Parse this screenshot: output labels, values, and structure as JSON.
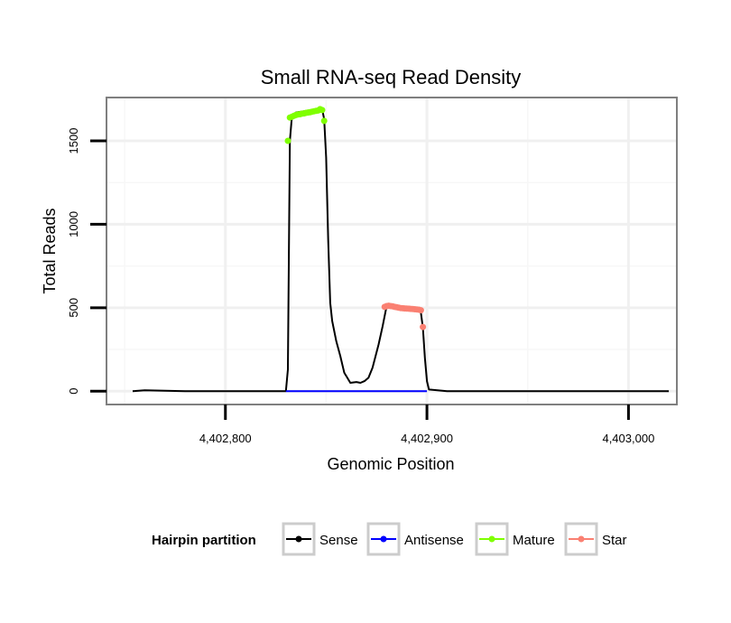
{
  "chart_data": {
    "type": "line",
    "title": "Small RNA-seq Read Density",
    "xlabel": "Genomic Position",
    "ylabel": "Total Reads",
    "xlim": [
      4402741,
      4403024
    ],
    "ylim": [
      -80,
      1760
    ],
    "x_ticks": [
      4402800,
      4402900,
      4403000
    ],
    "x_tick_labels": [
      "4,402,800",
      "4,402,900",
      "4,403,000"
    ],
    "y_ticks": [
      0,
      500,
      1000,
      1500
    ],
    "y_tick_labels": [
      "0",
      "500",
      "1000",
      "1500"
    ],
    "legend_title": "Hairpin partition",
    "legend_position": "bottom",
    "series": [
      {
        "name": "Sense",
        "color": "#000000",
        "style": "line",
        "x": [
          4402754,
          4402760,
          4402770,
          4402780,
          4402790,
          4402800,
          4402810,
          4402820,
          4402825,
          4402830,
          4402831,
          4402832,
          4402833,
          4402835,
          4402840,
          4402845,
          4402848,
          4402849,
          4402850,
          4402851,
          4402852,
          4402853,
          4402855,
          4402857,
          4402858,
          4402859,
          4402860,
          4402862,
          4402865,
          4402867,
          4402869,
          4402871,
          4402873,
          4402876,
          4402878,
          4402879,
          4402880,
          4402885,
          4402890,
          4402895,
          4402897,
          4402898,
          4402899,
          4402900,
          4402901,
          4402910,
          4402950,
          4403000,
          4403020
        ],
        "values": [
          0,
          5,
          3,
          0,
          0,
          0,
          0,
          0,
          0,
          0,
          130,
          1500,
          1650,
          1670,
          1680,
          1690,
          1690,
          1630,
          1400,
          900,
          530,
          420,
          300,
          210,
          160,
          110,
          90,
          50,
          55,
          50,
          60,
          80,
          140,
          280,
          390,
          450,
          510,
          505,
          495,
          490,
          470,
          380,
          200,
          60,
          10,
          0,
          0,
          0,
          0
        ]
      },
      {
        "name": "Antisense",
        "color": "#0000ff",
        "style": "line",
        "x": [
          4402830,
          4402900
        ],
        "values": [
          0,
          0
        ]
      },
      {
        "name": "Mature",
        "color": "#7fff00",
        "style": "points",
        "x": [
          4402831,
          4402832,
          4402833,
          4402834,
          4402835,
          4402836,
          4402837,
          4402838,
          4402839,
          4402840,
          4402841,
          4402842,
          4402843,
          4402844,
          4402845,
          4402846,
          4402847,
          4402848,
          4402849
        ],
        "values": [
          1500,
          1640,
          1645,
          1650,
          1655,
          1658,
          1660,
          1663,
          1665,
          1668,
          1670,
          1672,
          1675,
          1678,
          1680,
          1682,
          1690,
          1685,
          1620
        ]
      },
      {
        "name": "Star",
        "color": "#fa8072",
        "style": "points",
        "x": [
          4402879,
          4402880,
          4402881,
          4402882,
          4402883,
          4402884,
          4402885,
          4402886,
          4402887,
          4402888,
          4402889,
          4402890,
          4402891,
          4402892,
          4402893,
          4402894,
          4402895,
          4402896,
          4402897,
          4402898
        ],
        "values": [
          505,
          510,
          512,
          510,
          508,
          505,
          503,
          500,
          498,
          497,
          496,
          495,
          494,
          493,
          492,
          491,
          490,
          488,
          485,
          385
        ]
      }
    ]
  }
}
